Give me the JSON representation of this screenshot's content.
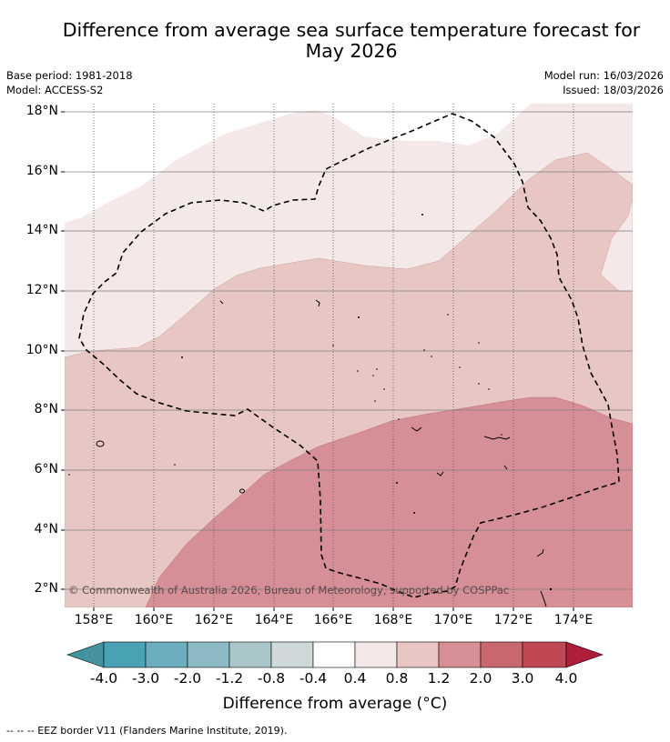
{
  "title": {
    "line1": "Difference from average sea surface temperature forecast for",
    "line2": "May 2026"
  },
  "metadata": {
    "base_period": "Base period: 1981-2018",
    "model": "Model: ACCESS-S2",
    "model_run": "Model run: 16/03/2026",
    "issued": "Issued: 18/03/2026"
  },
  "axes": {
    "lat_labels": [
      "18°N",
      "16°N",
      "14°N",
      "12°N",
      "10°N",
      "8°N",
      "6°N",
      "4°N",
      "2°N"
    ],
    "lon_labels": [
      "158°E",
      "160°E",
      "162°E",
      "164°E",
      "166°E",
      "168°E",
      "170°E",
      "172°E",
      "174°E"
    ]
  },
  "colorbar": {
    "ticks": [
      "-4.0",
      "-3.0",
      "-2.0",
      "-1.2",
      "-0.8",
      "-0.4",
      "0.4",
      "0.8",
      "1.2",
      "2.0",
      "3.0",
      "4.0"
    ],
    "colors": [
      "#4292a0",
      "#49a3b5",
      "#6baebf",
      "#8cb9c4",
      "#a9c7cb",
      "#cfd9da",
      "#ffffff",
      "#f5e8e8",
      "#e8c6c3",
      "#d68f96",
      "#c9676f",
      "#bf4854",
      "#b01d3a"
    ],
    "title": "Difference from average (°C)"
  },
  "map_colors": {
    "band_04_08": "#f4e8e8",
    "band_08_12": "#e7c6c3",
    "band_12_20": "#d68f96",
    "white_zone": "#ffffff"
  },
  "legend_text": "--  --  -- EEZ border V11 (Flanders Marine Institute, 2019).",
  "copyright": "© Commonwealth of Australia 2026, Bureau of Meteorology, supported by COSPPac"
}
